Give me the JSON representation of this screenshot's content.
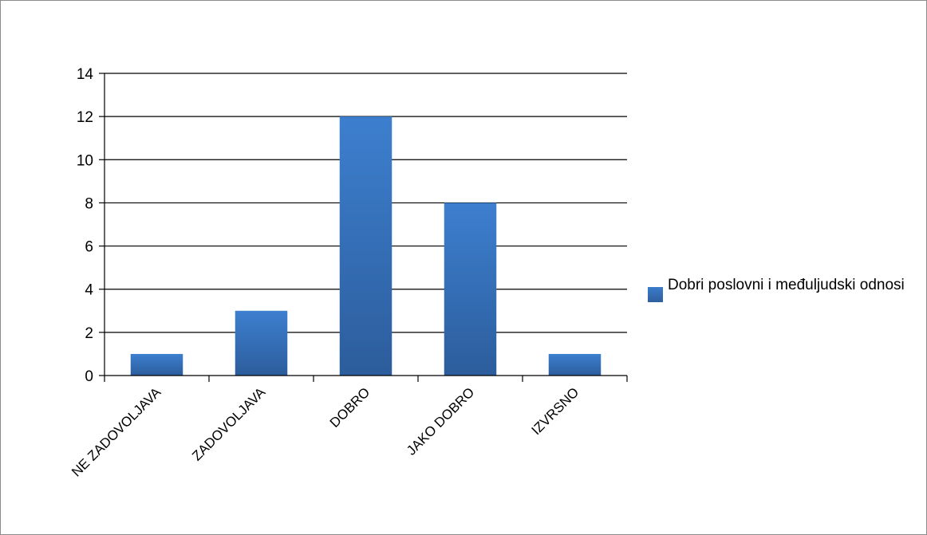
{
  "chart_data": {
    "type": "bar",
    "categories": [
      "NE ZADOVOLJAVA",
      "ZADOVOLJAVA",
      "DOBRO",
      "JAKO DOBRO",
      "IZVRSNO"
    ],
    "series": [
      {
        "name": "Dobri poslovni i međuljudski odnosi",
        "values": [
          1,
          3,
          12,
          8,
          1
        ],
        "color": "#3c7bc7"
      }
    ],
    "yticks": [
      0,
      2,
      4,
      6,
      8,
      10,
      12,
      14
    ],
    "ylim": [
      0,
      14
    ],
    "title": "",
    "xlabel": "",
    "ylabel": "",
    "grid": true,
    "legend_position": "right"
  }
}
